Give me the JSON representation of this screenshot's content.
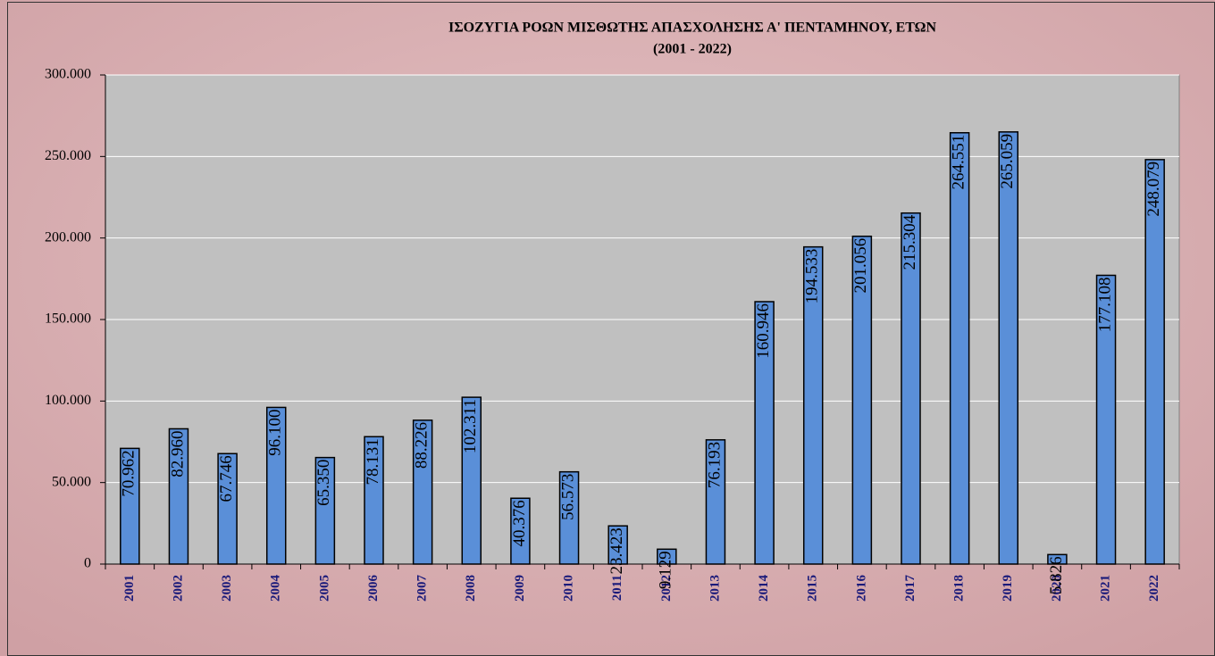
{
  "chart_data": {
    "type": "bar",
    "title": "ΙΣΟΖΥΓΙΑ ΡΟΩΝ ΜΙΣΘΩΤΗΣ ΑΠΑΣΧΟΛΗΣΗΣ Α' ΠΕΝΤΑΜΗΝΟΥ, ΕΤΩΝ",
    "subtitle": "(2001 - 2022)",
    "categories": [
      "2001",
      "2002",
      "2003",
      "2004",
      "2005",
      "2006",
      "2007",
      "2008",
      "2009",
      "2010",
      "2011",
      "2012",
      "2013",
      "2014",
      "2015",
      "2016",
      "2017",
      "2018",
      "2019",
      "2020",
      "2021",
      "2022"
    ],
    "values": [
      70962,
      82960,
      67746,
      96100,
      65350,
      78131,
      88226,
      102311,
      40376,
      56573,
      23423,
      9129,
      76193,
      160946,
      194533,
      201056,
      215304,
      264551,
      265059,
      5826,
      177108,
      248079
    ],
    "value_labels": [
      "70.962",
      "82.960",
      "67.746",
      "96.100",
      "65.350",
      "78.131",
      "88.226",
      "102.311",
      "40.376",
      "56.573",
      "23.423",
      "9.129",
      "76.193",
      "160.946",
      "194.533",
      "201.056",
      "215.304",
      "264.551",
      "265.059",
      "5.826",
      "177.108",
      "248.079"
    ],
    "color": "#5a8fd8",
    "ylim": [
      0,
      300000
    ],
    "yticks": [
      0,
      {
        "value": 50000,
        "label": "50.000"
      },
      {
        "value": 100000,
        "label": "100.000"
      },
      {
        "value": 150000,
        "label": "150.000"
      },
      {
        "value": 200000,
        "label": "200.000"
      },
      {
        "value": 250000,
        "label": "250.000"
      },
      {
        "value": 300000,
        "label": "300.000"
      }
    ],
    "grid": true
  }
}
